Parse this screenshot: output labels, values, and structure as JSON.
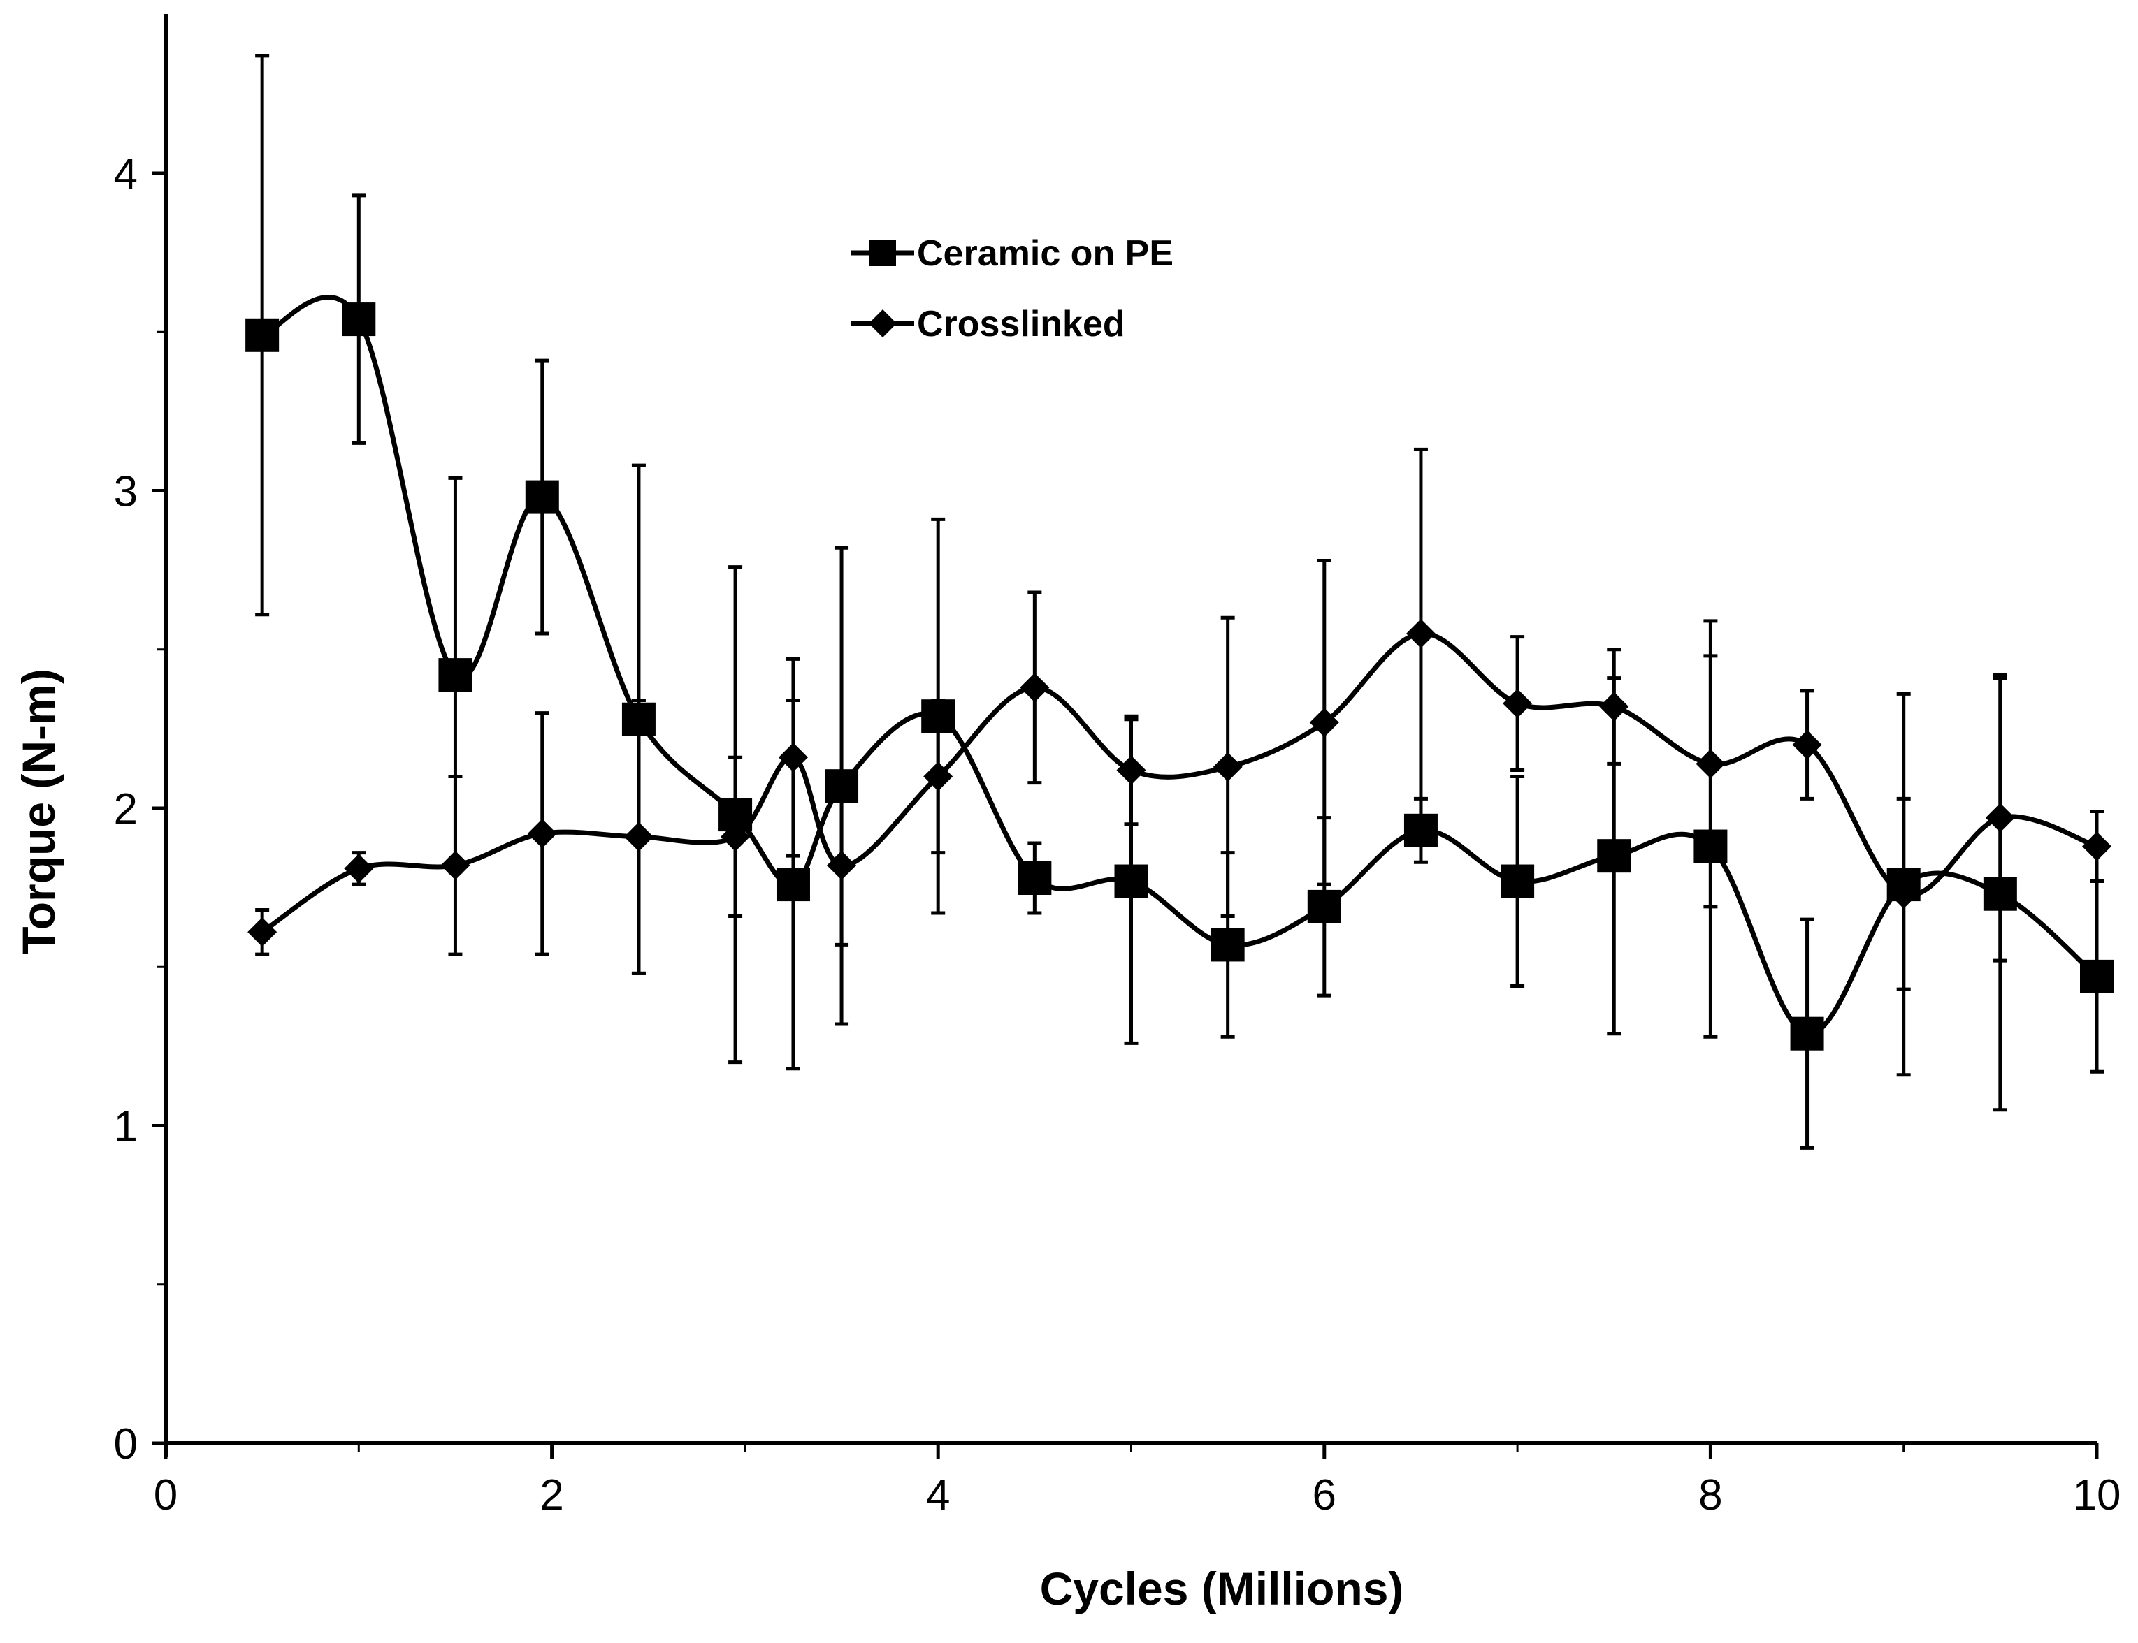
{
  "chart_data": {
    "type": "line",
    "title": "",
    "xlabel": "Cycles (Millions)",
    "ylabel": "Torque (N-m)",
    "xlim": [
      0,
      10
    ],
    "ylim": [
      0,
      4.5
    ],
    "x_ticks": [
      0,
      2,
      4,
      6,
      8,
      10
    ],
    "x_tick_labels": [
      "0",
      "2",
      "4",
      "6",
      "8",
      "10"
    ],
    "y_ticks": [
      0,
      1,
      2,
      3,
      4
    ],
    "y_tick_labels": [
      "0",
      "1",
      "2",
      "3",
      "4"
    ],
    "grid": false,
    "legend_position": "top-center",
    "line_style": "smoothed",
    "series": [
      {
        "name": "Ceramic on PE",
        "marker": "square",
        "x": [
          0.5,
          1.0,
          1.5,
          1.95,
          2.45,
          2.95,
          3.25,
          3.5,
          4.0,
          4.5,
          5.0,
          5.5,
          6.0,
          6.5,
          7.0,
          7.5,
          8.0,
          8.5,
          9.0,
          9.5,
          10.0
        ],
        "values": [
          3.49,
          3.54,
          2.42,
          2.98,
          2.28,
          1.98,
          1.76,
          2.07,
          2.29,
          1.78,
          1.77,
          1.57,
          1.69,
          1.93,
          1.77,
          1.85,
          1.88,
          1.29,
          1.76,
          1.73,
          1.47
        ],
        "error": [
          0.88,
          0.39,
          0.62,
          0.43,
          0.8,
          0.78,
          0.58,
          0.75,
          0.62,
          0.11,
          0.51,
          0.29,
          0.28,
          0.1,
          0.33,
          0.56,
          0.6,
          0.36,
          0.6,
          0.68,
          0.3
        ]
      },
      {
        "name": "Crosslinked",
        "marker": "diamond",
        "x": [
          0.5,
          1.0,
          1.5,
          1.95,
          2.45,
          2.95,
          3.25,
          3.5,
          4.0,
          4.5,
          5.0,
          5.5,
          6.0,
          6.5,
          7.0,
          7.5,
          8.0,
          8.5,
          9.0,
          9.5,
          10.0
        ],
        "values": [
          1.61,
          1.81,
          1.82,
          1.92,
          1.91,
          1.91,
          2.16,
          1.82,
          2.1,
          2.38,
          2.12,
          2.13,
          2.27,
          2.55,
          2.33,
          2.32,
          2.14,
          2.2,
          1.73,
          1.97,
          1.88
        ],
        "error": [
          0.07,
          0.05,
          0.28,
          0.38,
          0.43,
          0.25,
          0.31,
          0.25,
          0.24,
          0.3,
          0.17,
          0.47,
          0.51,
          0.58,
          0.21,
          0.18,
          0.45,
          0.17,
          0.3,
          0.45,
          0.11
        ]
      }
    ]
  }
}
